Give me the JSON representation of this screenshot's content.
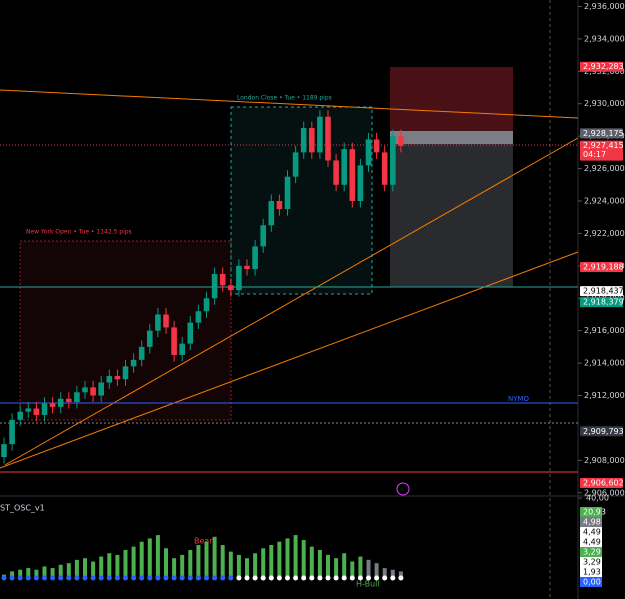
{
  "chart_data": {
    "type": "candlestick",
    "annotations": {
      "london": "London Close • Tue • 1189 pips",
      "newyork": "New York Open • Tue • 1142.5 pips",
      "nymo": "NYMO"
    },
    "ylim": [
      2.9058,
      2.9364
    ],
    "yticks": [
      {
        "value": 2.936,
        "label": "2,936,000"
      },
      {
        "value": 2.934,
        "label": "2,934,000"
      },
      {
        "value": 2.932,
        "label": "2,932,000"
      },
      {
        "value": 2.93,
        "label": "2,930,000"
      },
      {
        "value": 2.928,
        "label": "2,928,000"
      },
      {
        "value": 2.926,
        "label": "2,926,000"
      },
      {
        "value": 2.924,
        "label": "2,924,000"
      },
      {
        "value": 2.922,
        "label": "2,922,000"
      },
      {
        "value": 2.92,
        "label": "2,920,000"
      },
      {
        "value": 2.918,
        "label": "2,918,000"
      },
      {
        "value": 2.916,
        "label": "2,916,000"
      },
      {
        "value": 2.914,
        "label": "2,914,000"
      },
      {
        "value": 2.912,
        "label": "2,912,000"
      },
      {
        "value": 2.908,
        "label": "2,908,000"
      },
      {
        "value": 2.906,
        "label": "2,906,000"
      }
    ],
    "price_tags": [
      {
        "value": 2.932283,
        "label": "2,932,283",
        "color": "#f23645"
      },
      {
        "value": 2.928175,
        "label": "2,928,175",
        "color": "#5d606b"
      },
      {
        "value": 2.927415,
        "label": "2,927,415",
        "color": "#f23645",
        "countdown": "04:17"
      },
      {
        "value": 2.919188,
        "label": "2,919,188",
        "color": "#f23645"
      },
      {
        "value": 2.918437,
        "label": "2,918,437",
        "color": "#ffffff"
      },
      {
        "value": 2.918379,
        "label": "2,918,379",
        "color": "#089981"
      },
      {
        "value": 2.909793,
        "label": "2,909,793",
        "color": "#363a45"
      },
      {
        "value": 2.906602,
        "label": "2,906,602",
        "color": "#f23645"
      }
    ],
    "up_color": "#089981",
    "down_color": "#f23645",
    "open": [
      2.9082,
      2.909,
      2.9105,
      2.911,
      2.9112,
      2.9108,
      2.9115,
      2.9113,
      2.9118,
      2.9116,
      2.9122,
      2.9125,
      2.912,
      2.9128,
      2.9132,
      2.913,
      2.9138,
      2.9142,
      2.915,
      2.916,
      2.917,
      2.9162,
      2.9145,
      2.9152,
      2.9165,
      2.9172,
      2.918,
      2.9195,
      2.9188,
      2.9185,
      2.92,
      2.9198,
      2.9212,
      2.9225,
      2.924,
      2.9235,
      2.9255,
      2.927,
      2.9285,
      2.927,
      2.9292,
      2.9265,
      2.925,
      2.9272,
      2.924,
      2.9262,
      2.9278,
      2.927,
      2.925,
      2.928
    ],
    "high": [
      2.9094,
      2.9109,
      2.9114,
      2.9116,
      2.9116,
      2.9119,
      2.9119,
      2.9122,
      2.9122,
      2.9126,
      2.9129,
      2.9129,
      2.9132,
      2.9136,
      2.9136,
      2.9142,
      2.9146,
      2.9154,
      2.9164,
      2.9174,
      2.9174,
      2.9166,
      2.9156,
      2.9169,
      2.9176,
      2.9184,
      2.9199,
      2.9199,
      2.9192,
      2.9204,
      2.9204,
      2.9216,
      2.9229,
      2.9244,
      2.9244,
      2.9259,
      2.9274,
      2.9289,
      2.9289,
      2.9296,
      2.9296,
      2.9269,
      2.9276,
      2.9276,
      2.9266,
      2.9282,
      2.9282,
      2.9274,
      2.9284,
      2.9284
    ],
    "low": [
      2.9078,
      2.9086,
      2.9101,
      2.9106,
      2.9104,
      2.9104,
      2.9109,
      2.9109,
      2.9112,
      2.9112,
      2.9118,
      2.9116,
      2.9116,
      2.9124,
      2.9126,
      2.9126,
      2.9134,
      2.9138,
      2.9146,
      2.9156,
      2.9158,
      2.9141,
      2.9141,
      2.9148,
      2.9161,
      2.9168,
      2.9176,
      2.9184,
      2.9181,
      2.9181,
      2.9194,
      2.9194,
      2.9208,
      2.9221,
      2.9231,
      2.9231,
      2.9251,
      2.9266,
      2.9266,
      2.9266,
      2.9261,
      2.9246,
      2.9246,
      2.9236,
      2.9236,
      2.9258,
      2.9266,
      2.9246,
      2.9246,
      2.927
    ],
    "close": [
      2.909,
      2.9105,
      2.911,
      2.9112,
      2.9108,
      2.9115,
      2.9113,
      2.9118,
      2.9116,
      2.9122,
      2.9125,
      2.912,
      2.9128,
      2.9132,
      2.913,
      2.9138,
      2.9142,
      2.915,
      2.916,
      2.917,
      2.9162,
      2.9145,
      2.9152,
      2.9165,
      2.9172,
      2.918,
      2.9195,
      2.9188,
      2.9185,
      2.92,
      2.9198,
      2.9212,
      2.9225,
      2.924,
      2.9235,
      2.9255,
      2.927,
      2.9285,
      2.927,
      2.9292,
      2.9265,
      2.925,
      2.9272,
      2.924,
      2.9262,
      2.9278,
      2.927,
      2.925,
      2.928,
      2.9274
    ],
    "oscillator": {
      "title": "ST_OSC_v1",
      "bear": "Bear",
      "bull": "H-Bull",
      "color": "#4caf50",
      "ylim": [
        0,
        40
      ],
      "yticks": [
        {
          "value": 40,
          "label": "40,00"
        }
      ],
      "values": [
        2,
        4,
        5,
        6,
        5,
        7,
        6,
        8,
        9,
        11,
        12,
        10,
        13,
        15,
        14,
        17,
        19,
        22,
        24,
        26,
        18,
        12,
        14,
        17,
        20,
        22,
        25,
        20,
        16,
        14,
        12,
        15,
        18,
        20,
        22,
        24,
        26,
        23,
        19,
        17,
        14,
        12,
        15,
        10,
        13,
        11,
        9,
        6,
        5,
        4
      ],
      "tags": [
        {
          "label": "20,93",
          "color": "#4caf50"
        },
        {
          "label": "4,98",
          "color": "#787b86"
        },
        {
          "label": "4,49",
          "color": "#ffffff"
        },
        {
          "label": "4,49",
          "color": "#ffffff"
        },
        {
          "label": "3,29",
          "color": "#4caf50"
        },
        {
          "label": "3,29",
          "color": "#ffffff"
        },
        {
          "label": "1,93",
          "color": "#ffffff"
        },
        {
          "label": "0,00",
          "color": "#2962ff"
        }
      ]
    }
  }
}
